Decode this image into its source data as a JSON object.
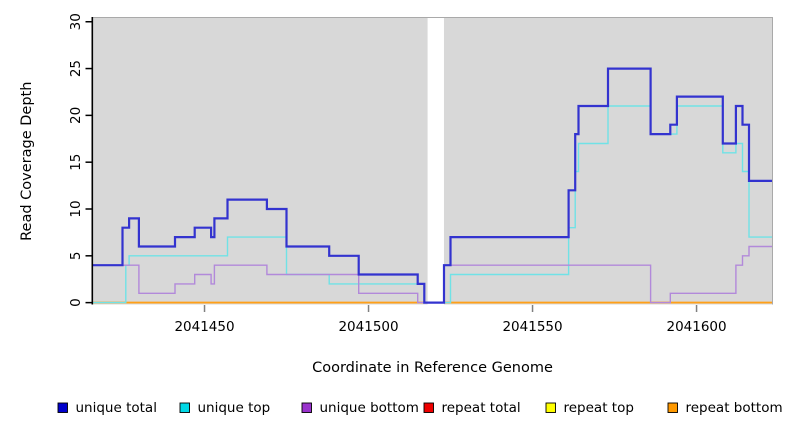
{
  "chart_data": {
    "type": "line",
    "style": "step-after",
    "title": "",
    "xlabel": "Coordinate in Reference Genome",
    "ylabel": "Read Coverage Depth",
    "xlim": [
      2041416,
      2041623
    ],
    "ylim": [
      -0.2,
      30.4
    ],
    "x_ticks": [
      2041450,
      2041500,
      2041550,
      2041600
    ],
    "y_ticks": [
      0,
      5,
      10,
      15,
      20,
      25,
      30
    ],
    "grid": "off",
    "legend_position": "bottom",
    "panel_bg": "#d8d8d8",
    "panel_border_color": "#a9a9a9",
    "no_data_gap_x": [
      2041518,
      2041523
    ],
    "gap_fill": "#ffffff",
    "axis_spine_color": "#000000",
    "x_tick_color": "#808080",
    "series": [
      {
        "name": "unique total",
        "color": "#3333cf",
        "legend_color": "#0000cc",
        "width": 2.2,
        "points": [
          [
            2041416,
            4
          ],
          [
            2041425,
            8
          ],
          [
            2041427,
            9
          ],
          [
            2041430,
            6
          ],
          [
            2041441,
            7
          ],
          [
            2041447,
            8
          ],
          [
            2041452,
            7
          ],
          [
            2041453,
            9
          ],
          [
            2041457,
            11
          ],
          [
            2041469,
            10
          ],
          [
            2041475,
            6
          ],
          [
            2041488,
            5
          ],
          [
            2041497,
            3
          ],
          [
            2041515,
            2
          ],
          [
            2041517,
            0
          ],
          [
            2041523,
            4
          ],
          [
            2041525,
            7
          ],
          [
            2041561,
            12
          ],
          [
            2041563,
            18
          ],
          [
            2041564,
            21
          ],
          [
            2041573,
            25
          ],
          [
            2041586,
            18
          ],
          [
            2041592,
            19
          ],
          [
            2041594,
            22
          ],
          [
            2041608,
            17
          ],
          [
            2041612,
            21
          ],
          [
            2041614,
            19
          ],
          [
            2041616,
            13
          ]
        ]
      },
      {
        "name": "unique top",
        "color": "#70e2e6",
        "legend_color": "#00d8e6",
        "width": 1.4,
        "points": [
          [
            2041416,
            0
          ],
          [
            2041426,
            4
          ],
          [
            2041427,
            5
          ],
          [
            2041457,
            7
          ],
          [
            2041475,
            3
          ],
          [
            2041488,
            2
          ],
          [
            2041517,
            0
          ],
          [
            2041525,
            3
          ],
          [
            2041561,
            8
          ],
          [
            2041563,
            14
          ],
          [
            2041564,
            17
          ],
          [
            2041573,
            21
          ],
          [
            2041586,
            18
          ],
          [
            2041594,
            21
          ],
          [
            2041608,
            16
          ],
          [
            2041612,
            17
          ],
          [
            2041614,
            14
          ],
          [
            2041616,
            7
          ]
        ]
      },
      {
        "name": "unique bottom",
        "color": "#b289da",
        "legend_color": "#9932cc",
        "width": 1.4,
        "points": [
          [
            2041416,
            4
          ],
          [
            2041430,
            1
          ],
          [
            2041441,
            2
          ],
          [
            2041447,
            3
          ],
          [
            2041452,
            2
          ],
          [
            2041453,
            4
          ],
          [
            2041469,
            3
          ],
          [
            2041497,
            1
          ],
          [
            2041515,
            0
          ],
          [
            2041523,
            4
          ],
          [
            2041586,
            0
          ],
          [
            2041592,
            1
          ],
          [
            2041612,
            4
          ],
          [
            2041614,
            5
          ],
          [
            2041616,
            6
          ]
        ]
      },
      {
        "name": "repeat total",
        "color": "#ee2222",
        "legend_color": "#ee0000",
        "width": 1.4,
        "clip_gap": true,
        "points": [
          [
            2041416,
            0
          ]
        ]
      },
      {
        "name": "repeat top",
        "color": "#ffff33",
        "legend_color": "#ffff00",
        "width": 1.4,
        "clip_gap": true,
        "points": [
          [
            2041416,
            0
          ]
        ]
      },
      {
        "name": "repeat bottom",
        "color": "#ffa018",
        "legend_color": "#ff9900",
        "width": 1.8,
        "clip_gap": true,
        "points": [
          [
            2041416,
            0
          ]
        ]
      }
    ],
    "draw_order": [
      3,
      4,
      5,
      1,
      2,
      0
    ]
  },
  "layout_note_values": {
    "x_tick_labels": [
      "2041450",
      "2041500",
      "2041550",
      "2041600"
    ],
    "y_tick_labels": [
      "0",
      "5",
      "10",
      "15",
      "20",
      "25",
      "30"
    ]
  }
}
